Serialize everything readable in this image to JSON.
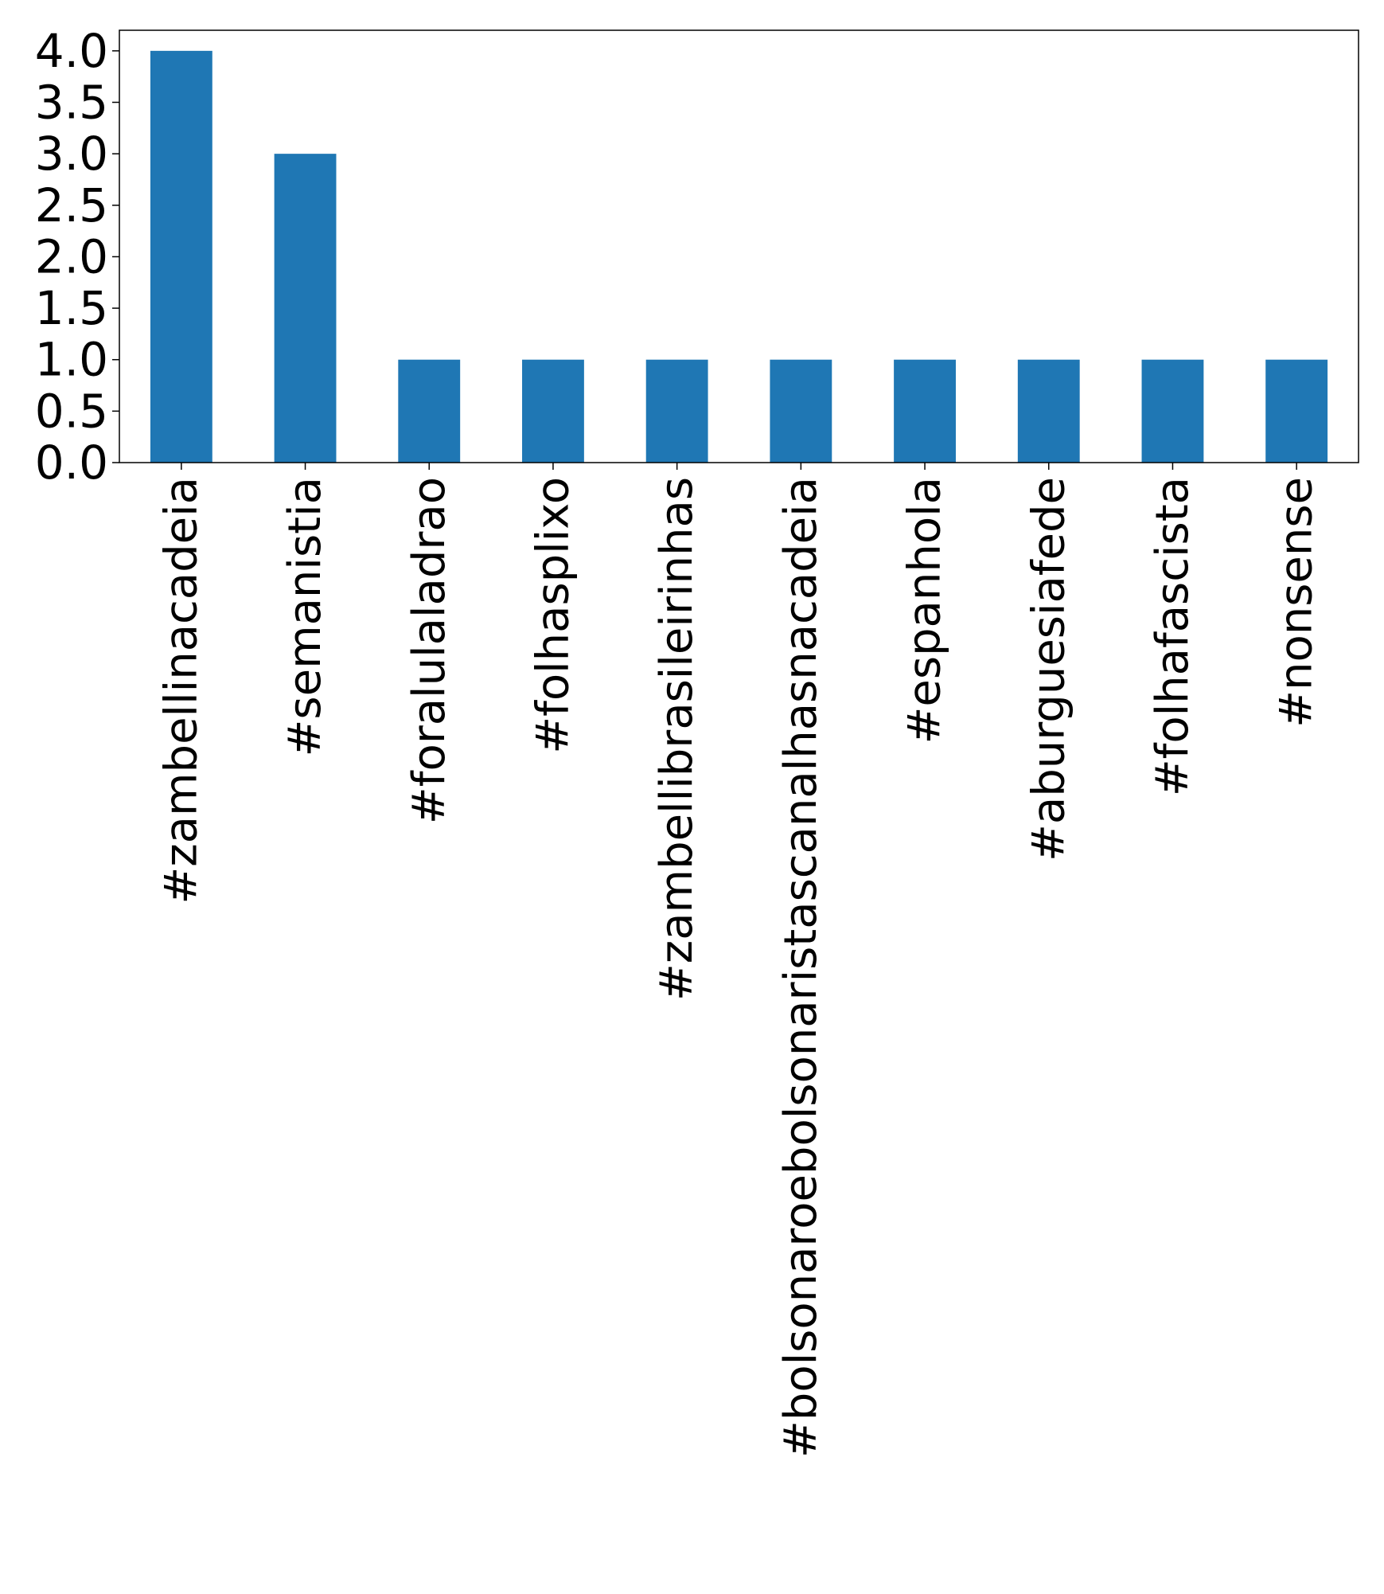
{
  "chart_data": {
    "type": "bar",
    "categories": [
      "#zambellinacadeia",
      "#semanistia",
      "#foralulaladrao",
      "#folhasplixo",
      "#zambellibrasileirinhas",
      "#bolsonaroebolsonaristascanalhasnacadeia",
      "#espanhola",
      "#aburguesiafede",
      "#folhafascista",
      "#nonsense"
    ],
    "values": [
      4,
      3,
      1,
      1,
      1,
      1,
      1,
      1,
      1,
      1
    ],
    "yticks": [
      "0.0",
      "0.5",
      "1.0",
      "1.5",
      "2.0",
      "2.5",
      "3.0",
      "3.5",
      "4.0"
    ],
    "ylim": [
      0,
      4.2
    ],
    "title": "",
    "xlabel": "",
    "ylabel": "",
    "grid": false,
    "bar_color": "#1f77b4"
  }
}
